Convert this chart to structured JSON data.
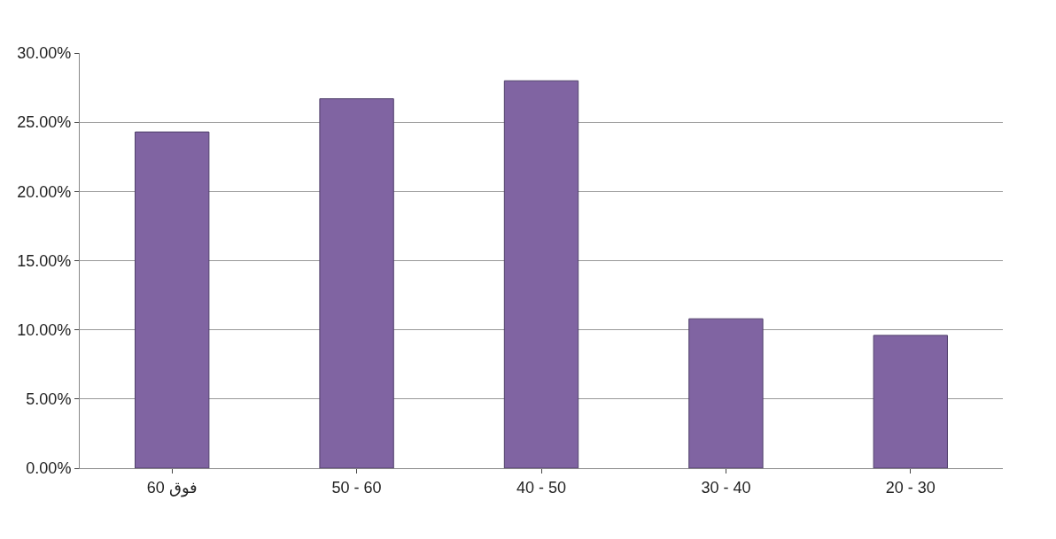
{
  "chart_data": {
    "type": "bar",
    "categories": [
      "فوق 60",
      "50 - 60",
      "40 - 50",
      "30 - 40",
      "20 - 30"
    ],
    "values": [
      24.3,
      26.7,
      28.0,
      10.8,
      9.6
    ],
    "color": "#8064a2",
    "ylim": [
      0,
      30
    ],
    "yticks": [
      {
        "value": 0,
        "label": "0.00%"
      },
      {
        "value": 5,
        "label": "5.00%"
      },
      {
        "value": 10,
        "label": "10.00%"
      },
      {
        "value": 15,
        "label": "15.00%"
      },
      {
        "value": 20,
        "label": "20.00%"
      },
      {
        "value": 25,
        "label": "25.00%"
      },
      {
        "value": 30,
        "label": "30.00%"
      }
    ],
    "grid": "y"
  }
}
